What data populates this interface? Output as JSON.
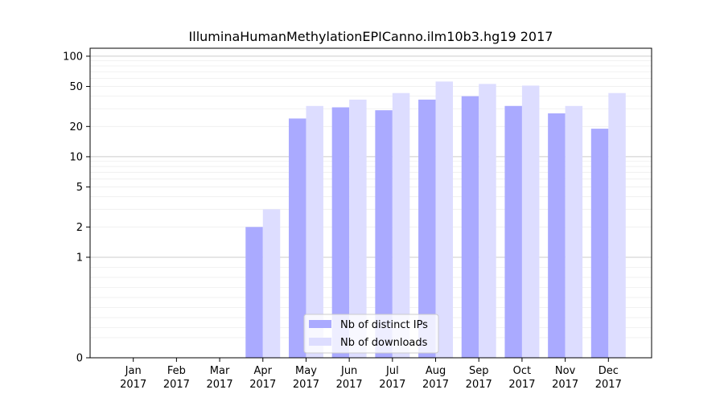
{
  "chart_data": {
    "type": "bar",
    "title": "IlluminaHumanMethylationEPICanno.ilm10b3.hg19 2017",
    "xlabel": "",
    "ylabel": "",
    "yscale": "symlog",
    "ylim": [
      0,
      120
    ],
    "yticks": [
      {
        "value": 0,
        "label": "0"
      },
      {
        "value": 1,
        "label": "1"
      },
      {
        "value": 2,
        "label": "2"
      },
      {
        "value": 5,
        "label": "5"
      },
      {
        "value": 10,
        "label": "10"
      },
      {
        "value": 20,
        "label": "20"
      },
      {
        "value": 50,
        "label": "50"
      },
      {
        "value": 100,
        "label": "100"
      }
    ],
    "categories": [
      [
        "Jan",
        "2017"
      ],
      [
        "Feb",
        "2017"
      ],
      [
        "Mar",
        "2017"
      ],
      [
        "Apr",
        "2017"
      ],
      [
        "May",
        "2017"
      ],
      [
        "Jun",
        "2017"
      ],
      [
        "Jul",
        "2017"
      ],
      [
        "Aug",
        "2017"
      ],
      [
        "Sep",
        "2017"
      ],
      [
        "Oct",
        "2017"
      ],
      [
        "Nov",
        "2017"
      ],
      [
        "Dec",
        "2017"
      ]
    ],
    "series": [
      {
        "name": "Nb of distinct IPs",
        "color": "#aaaaff",
        "values": [
          0,
          0,
          0,
          2,
          24,
          31,
          29,
          37,
          40,
          32,
          27,
          19
        ]
      },
      {
        "name": "Nb of downloads",
        "color": "#ddddff",
        "values": [
          0,
          0,
          0,
          3,
          32,
          37,
          43,
          56,
          53,
          51,
          32,
          43
        ]
      }
    ],
    "grid": true,
    "legend_position": "lower-center"
  }
}
